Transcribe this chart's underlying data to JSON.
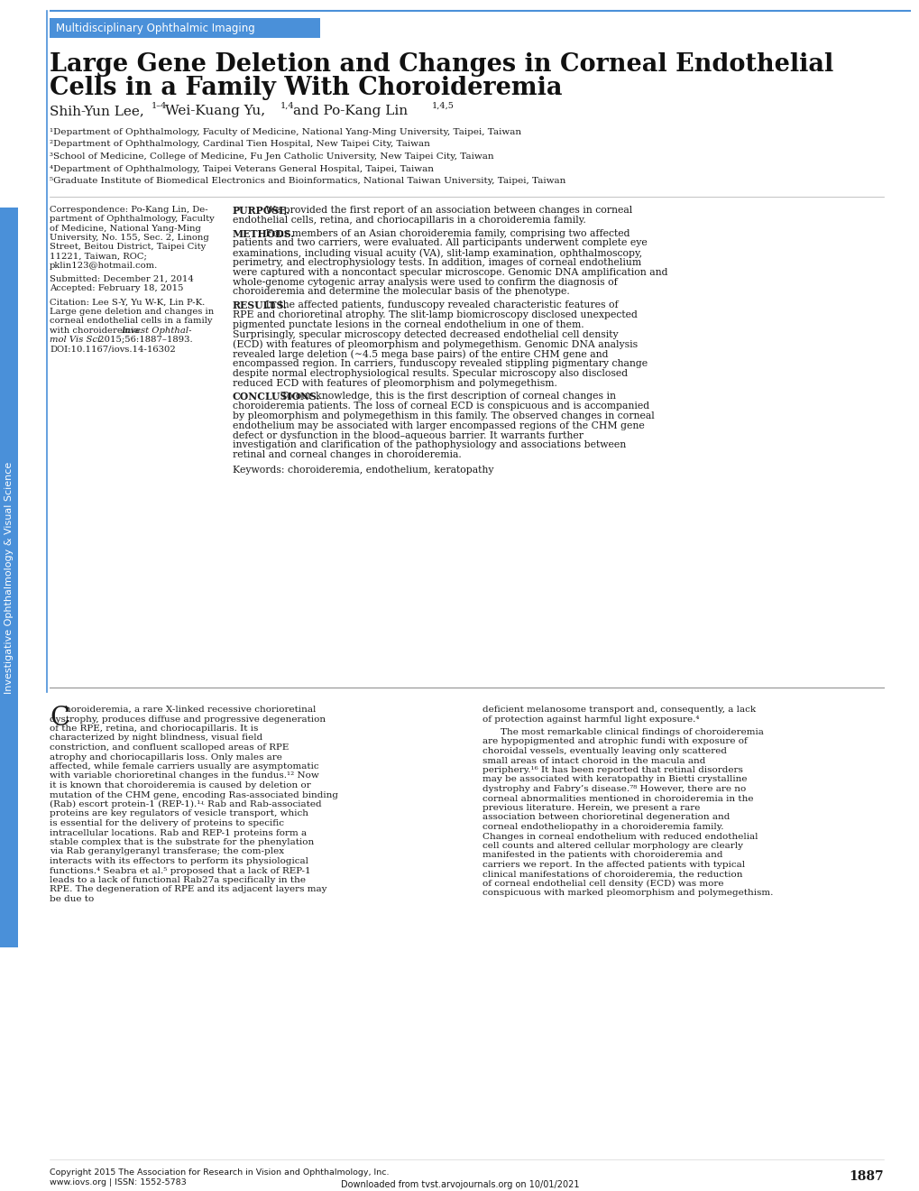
{
  "page_bg": "#ffffff",
  "header_bg": "#4a90d9",
  "header_text": "Multidisciplinary Ophthalmic Imaging",
  "header_text_color": "#ffffff",
  "title_line1": "Large Gene Deletion and Changes in Corneal Endothelial",
  "title_line2": "Cells in a Family With Choroideremia",
  "affil1": "¹Department of Ophthalmology, Faculty of Medicine, National Yang-Ming University, Taipei, Taiwan",
  "affil2": "²Department of Ophthalmology, Cardinal Tien Hospital, New Taipei City, Taiwan",
  "affil3": "³School of Medicine, College of Medicine, Fu Jen Catholic University, New Taipei City, Taiwan",
  "affil4": "⁴Department of Ophthalmology, Taipei Veterans General Hospital, Taipei, Taiwan",
  "affil5": "⁵Graduate Institute of Biomedical Electronics and Bioinformatics, National Taiwan University, Taipei, Taiwan",
  "purpose_text": "We provided the first report of an association between changes in corneal endothelial cells, retina, and choriocapillaris in a choroideremia family.",
  "methods_text": "Four members of an Asian choroideremia family, comprising two affected patients and two carriers, were evaluated. All participants underwent complete eye examinations, including visual acuity (VA), slit-lamp examination, ophthalmoscopy, perimetry, and electrophysiology tests. In addition, images of corneal endothelium were captured with a noncontact specular microscope. Genomic DNA amplification and whole-genome cytogenic array analysis were used to confirm the diagnosis of choroideremia and determine the molecular basis of the phenotype.",
  "results_text": "In the affected patients, funduscopy revealed characteristic features of RPE and chorioretinal atrophy. The slit-lamp biomicroscopy disclosed unexpected pigmented punctate lesions in the corneal endothelium in one of them. Surprisingly, specular microscopy detected decreased endothelial cell density (ECD) with features of pleomorphism and polymegethism. Genomic DNA analysis revealed large deletion (∼4.5 mega base pairs) of the entire CHM gene and encompassed region. In carriers, funduscopy revealed stippling pigmentary change despite normal electrophysiological results. Specular microscopy also disclosed reduced ECD with features of pleomorphism and polymegethism.",
  "conclusions_text": "To our knowledge, this is the first description of corneal changes in choroideremia patients. The loss of corneal ECD is conspicuous and is accompanied by pleomorphism and polymegethism in this family. The observed changes in corneal endothelium may be associated with larger encompassed regions of the CHM gene defect or dysfunction in the blood–aqueous barrier. It warrants further investigation and clarification of the pathophysiology and associations between retinal and corneal changes in choroideremia.",
  "keywords": "Keywords: choroideremia, endothelium, keratopathy",
  "col1_body": "horoideremia, a rare X-linked recessive chorioretinal dystrophy, produces diffuse and progressive degeneration of the RPE, retina, and choriocapillaris. It is characterized by night blindness, visual field constriction, and confluent scalloped areas of RPE atrophy and choriocapillaris loss. Only males are affected, while female carriers usually are asymptomatic with variable chorioretinal changes in the fundus.¹² Now it is known that choroideremia is caused by deletion or mutation of the CHM gene, encoding Ras-associated binding (Rab) escort protein-1 (REP-1).¹ʵ Rab and Rab-associated proteins are key regulators of vesicle transport, which is essential for the delivery of proteins to specific intracellular locations. Rab and REP-1 proteins form a stable complex that is the substrate for the phenylation via Rab geranylgeranyl transferase; the complex interacts with its effectors to perform its physiological functions.⁴ Seabra et al.⁵ proposed that a lack of REP-1 leads to a lack of functional Rab27a specifically in the RPE. The degeneration of RPE and its adjacent layers may be due to",
  "col2_body": "deficient melanosome transport and, consequently, a lack of protection against harmful light exposure.⁴\n\nThe most remarkable clinical findings of choroideremia are hypopigmented and atrophic fundi with exposure of choroidal vessels, eventually leaving only scattered small areas of intact choroid in the macula and periphery.¹⁶ It has been reported that retinal disorders may be associated with keratopathy in Bietti crystalline dystrophy and Fabry’s disease.⁷⁸ However, there are no corneal abnormalities mentioned in choroideremia in the previous literature. Herein, we present a rare association between chorioretinal degeneration and corneal endotheliopathy in a choroideremia family. Changes in corneal endothelium with reduced endothelial cell counts and altered cellular morphology are clearly manifested in the patients with choroideremia and carriers we report. In the affected patients with typical clinical manifestations of choroideremia, the reduction of corneal endothelial cell density (ECD) was more conspicuous with marked pleomorphism and polymegethism.",
  "sidebar_text": "Investigative Ophthalmology & Visual Science",
  "sidebar_color": "#4a90d9",
  "copyright_line1": "Copyright 2015 The Association for Research in Vision and Ophthalmology, Inc.",
  "copyright_line2": "www.iovs.org | ISSN: 1552-5783",
  "page_number": "1887",
  "download_text": "Downloaded from tvst.arvojournals.org on 10/01/2021",
  "accent_color": "#4a90d9"
}
